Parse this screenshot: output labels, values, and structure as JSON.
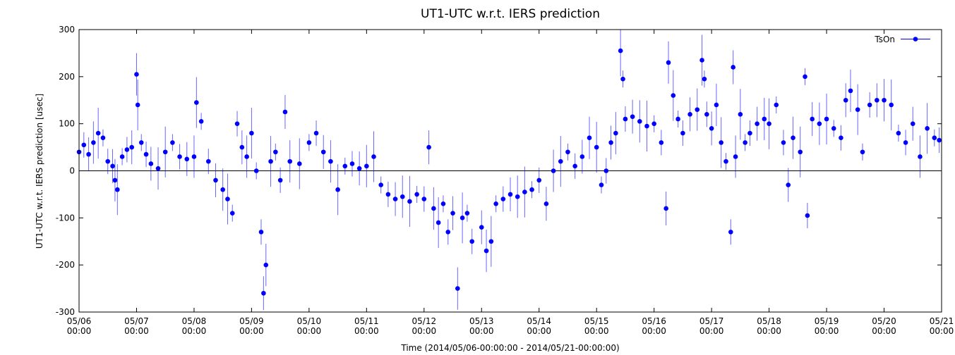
{
  "chart_data": {
    "type": "scatter",
    "title": "UT1-UTC w.r.t. IERS prediction",
    "xlabel": "Time (2014/05/06-00:00:00 - 2014/05/21-00:00:00)",
    "ylabel": "UT1-UTC w.r.t. IERS prediction [usec]",
    "xlim": [
      "2014-05-06T00:00",
      "2014-05-21T00:00"
    ],
    "ylim": [
      -300,
      300
    ],
    "yticks": [
      -300,
      -200,
      -100,
      0,
      100,
      200,
      300
    ],
    "xticks": [
      {
        "date": "05/06",
        "time": "00:00"
      },
      {
        "date": "05/07",
        "time": "00:00"
      },
      {
        "date": "05/08",
        "time": "00:00"
      },
      {
        "date": "05/09",
        "time": "00:00"
      },
      {
        "date": "05/10",
        "time": "00:00"
      },
      {
        "date": "05/11",
        "time": "00:00"
      },
      {
        "date": "05/12",
        "time": "00:00"
      },
      {
        "date": "05/13",
        "time": "00:00"
      },
      {
        "date": "05/14",
        "time": "00:00"
      },
      {
        "date": "05/15",
        "time": "00:00"
      },
      {
        "date": "05/16",
        "time": "00:00"
      },
      {
        "date": "05/17",
        "time": "00:00"
      },
      {
        "date": "05/18",
        "time": "00:00"
      },
      {
        "date": "05/19",
        "time": "00:00"
      },
      {
        "date": "05/20",
        "time": "00:00"
      },
      {
        "date": "05/21",
        "time": "00:00"
      }
    ],
    "zero_line": true,
    "grid": false,
    "legend_position": "top-right",
    "error_bars": true,
    "series": [
      {
        "name": "TsOn",
        "color": "#0000ff",
        "points": [
          [
            "2014-05-06T00:00",
            40
          ],
          [
            "2014-05-06T02:00",
            55
          ],
          [
            "2014-05-06T04:00",
            35
          ],
          [
            "2014-05-06T06:00",
            60
          ],
          [
            "2014-05-06T08:00",
            80
          ],
          [
            "2014-05-06T10:00",
            70
          ],
          [
            "2014-05-06T12:00",
            20
          ],
          [
            "2014-05-06T14:00",
            10
          ],
          [
            "2014-05-06T15:00",
            -20
          ],
          [
            "2014-05-06T16:00",
            -40
          ],
          [
            "2014-05-06T18:00",
            30
          ],
          [
            "2014-05-06T20:00",
            45
          ],
          [
            "2014-05-06T22:00",
            50
          ],
          [
            "2014-05-07T00:00",
            205
          ],
          [
            "2014-05-07T00:30",
            140
          ],
          [
            "2014-05-07T02:00",
            60
          ],
          [
            "2014-05-07T04:00",
            35
          ],
          [
            "2014-05-07T06:00",
            15
          ],
          [
            "2014-05-07T09:00",
            5
          ],
          [
            "2014-05-07T12:00",
            40
          ],
          [
            "2014-05-07T15:00",
            60
          ],
          [
            "2014-05-07T18:00",
            30
          ],
          [
            "2014-05-07T21:00",
            25
          ],
          [
            "2014-05-08T00:00",
            30
          ],
          [
            "2014-05-08T01:00",
            145
          ],
          [
            "2014-05-08T03:00",
            105
          ],
          [
            "2014-05-08T06:00",
            20
          ],
          [
            "2014-05-08T09:00",
            -20
          ],
          [
            "2014-05-08T12:00",
            -40
          ],
          [
            "2014-05-08T14:00",
            -60
          ],
          [
            "2014-05-08T16:00",
            -90
          ],
          [
            "2014-05-08T18:00",
            100
          ],
          [
            "2014-05-08T20:00",
            50
          ],
          [
            "2014-05-08T22:00",
            30
          ],
          [
            "2014-05-09T00:00",
            80
          ],
          [
            "2014-05-09T02:00",
            0
          ],
          [
            "2014-05-09T04:00",
            -130
          ],
          [
            "2014-05-09T05:00",
            -260
          ],
          [
            "2014-05-09T06:00",
            -200
          ],
          [
            "2014-05-09T08:00",
            20
          ],
          [
            "2014-05-09T10:00",
            40
          ],
          [
            "2014-05-09T12:00",
            -20
          ],
          [
            "2014-05-09T14:00",
            125
          ],
          [
            "2014-05-09T16:00",
            20
          ],
          [
            "2014-05-09T20:00",
            15
          ],
          [
            "2014-05-10T00:00",
            60
          ],
          [
            "2014-05-10T03:00",
            80
          ],
          [
            "2014-05-10T06:00",
            40
          ],
          [
            "2014-05-10T09:00",
            20
          ],
          [
            "2014-05-10T12:00",
            -40
          ],
          [
            "2014-05-10T15:00",
            10
          ],
          [
            "2014-05-10T18:00",
            15
          ],
          [
            "2014-05-10T21:00",
            5
          ],
          [
            "2014-05-11T00:00",
            10
          ],
          [
            "2014-05-11T03:00",
            30
          ],
          [
            "2014-05-11T06:00",
            -30
          ],
          [
            "2014-05-11T09:00",
            -50
          ],
          [
            "2014-05-11T12:00",
            -60
          ],
          [
            "2014-05-11T15:00",
            -55
          ],
          [
            "2014-05-11T18:00",
            -65
          ],
          [
            "2014-05-11T21:00",
            -50
          ],
          [
            "2014-05-12T00:00",
            -60
          ],
          [
            "2014-05-12T02:00",
            50
          ],
          [
            "2014-05-12T04:00",
            -80
          ],
          [
            "2014-05-12T06:00",
            -110
          ],
          [
            "2014-05-12T08:00",
            -70
          ],
          [
            "2014-05-12T10:00",
            -130
          ],
          [
            "2014-05-12T12:00",
            -90
          ],
          [
            "2014-05-12T14:00",
            -250
          ],
          [
            "2014-05-12T16:00",
            -100
          ],
          [
            "2014-05-12T18:00",
            -90
          ],
          [
            "2014-05-12T20:00",
            -150
          ],
          [
            "2014-05-13T00:00",
            -120
          ],
          [
            "2014-05-13T02:00",
            -170
          ],
          [
            "2014-05-13T04:00",
            -150
          ],
          [
            "2014-05-13T06:00",
            -70
          ],
          [
            "2014-05-13T09:00",
            -60
          ],
          [
            "2014-05-13T12:00",
            -50
          ],
          [
            "2014-05-13T15:00",
            -55
          ],
          [
            "2014-05-13T18:00",
            -45
          ],
          [
            "2014-05-13T21:00",
            -40
          ],
          [
            "2014-05-14T00:00",
            -20
          ],
          [
            "2014-05-14T03:00",
            -70
          ],
          [
            "2014-05-14T06:00",
            0
          ],
          [
            "2014-05-14T09:00",
            20
          ],
          [
            "2014-05-14T12:00",
            40
          ],
          [
            "2014-05-14T15:00",
            10
          ],
          [
            "2014-05-14T18:00",
            30
          ],
          [
            "2014-05-14T21:00",
            70
          ],
          [
            "2014-05-15T00:00",
            50
          ],
          [
            "2014-05-15T02:00",
            -30
          ],
          [
            "2014-05-15T04:00",
            0
          ],
          [
            "2014-05-15T06:00",
            60
          ],
          [
            "2014-05-15T08:00",
            80
          ],
          [
            "2014-05-15T10:00",
            255
          ],
          [
            "2014-05-15T11:00",
            195
          ],
          [
            "2014-05-15T12:00",
            110
          ],
          [
            "2014-05-15T15:00",
            115
          ],
          [
            "2014-05-15T18:00",
            105
          ],
          [
            "2014-05-15T21:00",
            95
          ],
          [
            "2014-05-16T00:00",
            100
          ],
          [
            "2014-05-16T03:00",
            60
          ],
          [
            "2014-05-16T05:00",
            -80
          ],
          [
            "2014-05-16T06:00",
            230
          ],
          [
            "2014-05-16T08:00",
            160
          ],
          [
            "2014-05-16T10:00",
            110
          ],
          [
            "2014-05-16T12:00",
            80
          ],
          [
            "2014-05-16T15:00",
            120
          ],
          [
            "2014-05-16T18:00",
            130
          ],
          [
            "2014-05-16T20:00",
            235
          ],
          [
            "2014-05-16T21:00",
            195
          ],
          [
            "2014-05-16T22:00",
            120
          ],
          [
            "2014-05-17T00:00",
            90
          ],
          [
            "2014-05-17T02:00",
            140
          ],
          [
            "2014-05-17T04:00",
            60
          ],
          [
            "2014-05-17T06:00",
            20
          ],
          [
            "2014-05-17T08:00",
            -130
          ],
          [
            "2014-05-17T09:00",
            220
          ],
          [
            "2014-05-17T10:00",
            30
          ],
          [
            "2014-05-17T12:00",
            120
          ],
          [
            "2014-05-17T14:00",
            60
          ],
          [
            "2014-05-17T16:00",
            80
          ],
          [
            "2014-05-17T19:00",
            100
          ],
          [
            "2014-05-17T22:00",
            110
          ],
          [
            "2014-05-18T00:00",
            100
          ],
          [
            "2014-05-18T03:00",
            140
          ],
          [
            "2014-05-18T06:00",
            60
          ],
          [
            "2014-05-18T08:00",
            -30
          ],
          [
            "2014-05-18T10:00",
            70
          ],
          [
            "2014-05-18T13:00",
            40
          ],
          [
            "2014-05-18T15:00",
            200
          ],
          [
            "2014-05-18T16:00",
            -95
          ],
          [
            "2014-05-18T18:00",
            110
          ],
          [
            "2014-05-18T21:00",
            100
          ],
          [
            "2014-05-19T00:00",
            110
          ],
          [
            "2014-05-19T03:00",
            90
          ],
          [
            "2014-05-19T06:00",
            70
          ],
          [
            "2014-05-19T08:00",
            150
          ],
          [
            "2014-05-19T10:00",
            170
          ],
          [
            "2014-05-19T13:00",
            130
          ],
          [
            "2014-05-19T15:00",
            40
          ],
          [
            "2014-05-19T18:00",
            140
          ],
          [
            "2014-05-19T21:00",
            150
          ],
          [
            "2014-05-20T00:00",
            150
          ],
          [
            "2014-05-20T03:00",
            140
          ],
          [
            "2014-05-20T06:00",
            80
          ],
          [
            "2014-05-20T09:00",
            60
          ],
          [
            "2014-05-20T12:00",
            100
          ],
          [
            "2014-05-20T15:00",
            30
          ],
          [
            "2014-05-20T18:00",
            90
          ],
          [
            "2014-05-20T21:00",
            70
          ],
          [
            "2014-05-20T23:00",
            65
          ]
        ]
      }
    ]
  }
}
